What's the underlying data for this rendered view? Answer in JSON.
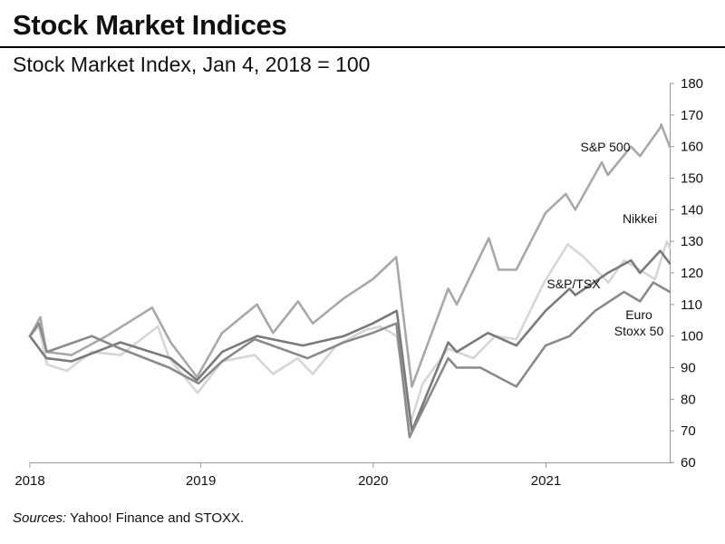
{
  "header": {
    "title": "Stock Market Indices",
    "subtitle": "Stock Market Index, Jan 4, 2018 = 100"
  },
  "footer": {
    "source_prefix": "Sources:",
    "source_text": " Yahoo! Finance and STOXX."
  },
  "chart_data": {
    "type": "line",
    "title": "Stock Market Indices",
    "subtitle": "Stock Market Index, Jan 4, 2018 = 100",
    "xlabel": "",
    "ylabel": "",
    "xlim": [
      "2018-01-04",
      "2021-09-20"
    ],
    "ylim": [
      60,
      180
    ],
    "y_axis_side": "right",
    "grid": false,
    "legend": "inline labels",
    "x_ticks": [
      "2018",
      "2019",
      "2020",
      "2021"
    ],
    "y_ticks": [
      60,
      70,
      80,
      90,
      100,
      110,
      120,
      130,
      140,
      150,
      160,
      170,
      180
    ],
    "series": [
      {
        "name": "Nikkei",
        "label_lines": [
          "Nikkei"
        ],
        "color": "#d6d6d6",
        "x": [
          "2018-01-04",
          "2018-01-23",
          "2018-02-09",
          "2018-03-23",
          "2018-05-15",
          "2018-07-15",
          "2018-10-02",
          "2018-10-26",
          "2018-12-25",
          "2019-02-15",
          "2019-04-25",
          "2019-06-03",
          "2019-07-25",
          "2019-08-26",
          "2019-10-15",
          "2019-12-17",
          "2020-01-17",
          "2020-02-20",
          "2020-03-19",
          "2020-04-15",
          "2020-06-08",
          "2020-07-31",
          "2020-09-15",
          "2020-10-30",
          "2020-12-28",
          "2021-02-16",
          "2021-03-22",
          "2021-05-13",
          "2021-06-15",
          "2021-08-20",
          "2021-09-14",
          "2021-09-20"
        ],
        "values": [
          100,
          103,
          91,
          89,
          95,
          94,
          103,
          93,
          82,
          92,
          94,
          88,
          93,
          88,
          97,
          102,
          103,
          100,
          72,
          85,
          96,
          93,
          100,
          99,
          117,
          129,
          125,
          117,
          124,
          118,
          130,
          128
        ]
      },
      {
        "name": "S&P 500",
        "label_lines": [
          "S&P 500"
        ],
        "color": "#a8a8a8",
        "x": [
          "2018-01-04",
          "2018-01-26",
          "2018-02-08",
          "2018-04-02",
          "2018-06-15",
          "2018-09-20",
          "2018-10-29",
          "2018-12-24",
          "2019-02-15",
          "2019-04-30",
          "2019-06-03",
          "2019-07-26",
          "2019-08-26",
          "2019-10-31",
          "2019-12-31",
          "2020-02-19",
          "2020-03-23",
          "2020-06-08",
          "2020-06-26",
          "2020-09-02",
          "2020-09-23",
          "2020-10-30",
          "2020-12-31",
          "2021-02-12",
          "2021-03-04",
          "2021-04-29",
          "2021-05-12",
          "2021-06-30",
          "2021-07-19",
          "2021-08-31",
          "2021-09-02",
          "2021-09-20"
        ],
        "values": [
          100,
          106,
          95,
          94,
          100,
          109,
          98,
          87,
          101,
          110,
          101,
          111,
          104,
          112,
          118,
          125,
          84,
          115,
          110,
          131,
          121,
          121,
          139,
          145,
          140,
          155,
          151,
          160,
          157,
          166,
          167,
          160
        ]
      },
      {
        "name": "S&P/TSX",
        "label_lines": [
          "S&P/TSX"
        ],
        "color": "#7a7a7a",
        "x": [
          "2018-01-04",
          "2018-02-08",
          "2018-04-02",
          "2018-07-15",
          "2018-10-29",
          "2018-12-24",
          "2019-02-15",
          "2019-04-30",
          "2019-08-05",
          "2019-10-31",
          "2019-12-31",
          "2020-02-20",
          "2020-03-23",
          "2020-06-08",
          "2020-06-26",
          "2020-08-31",
          "2020-10-30",
          "2020-12-31",
          "2021-02-20",
          "2021-03-04",
          "2021-05-12",
          "2021-06-30",
          "2021-07-19",
          "2021-08-31",
          "2021-09-20"
        ],
        "values": [
          100,
          93,
          92,
          98,
          93,
          86,
          95,
          100,
          97,
          100,
          104,
          108,
          70,
          98,
          95,
          101,
          97,
          108,
          115,
          113,
          120,
          124,
          120,
          127,
          123
        ]
      },
      {
        "name": "Euro Stoxx 50",
        "label_lines": [
          "Euro",
          "Stoxx 50"
        ],
        "color": "#8a8a8a",
        "x": [
          "2018-01-04",
          "2018-01-23",
          "2018-02-09",
          "2018-05-15",
          "2018-07-15",
          "2018-10-26",
          "2018-12-27",
          "2019-02-15",
          "2019-04-25",
          "2019-08-15",
          "2019-10-31",
          "2019-12-31",
          "2020-02-19",
          "2020-03-18",
          "2020-06-08",
          "2020-06-26",
          "2020-08-15",
          "2020-10-30",
          "2020-12-31",
          "2021-02-20",
          "2021-04-15",
          "2021-06-15",
          "2021-07-19",
          "2021-08-16",
          "2021-09-20"
        ],
        "values": [
          100,
          104,
          95,
          100,
          96,
          90,
          85,
          92,
          99,
          93,
          98,
          101,
          104,
          68,
          93,
          90,
          90,
          84,
          97,
          100,
          108,
          114,
          111,
          117,
          114
        ]
      }
    ]
  }
}
